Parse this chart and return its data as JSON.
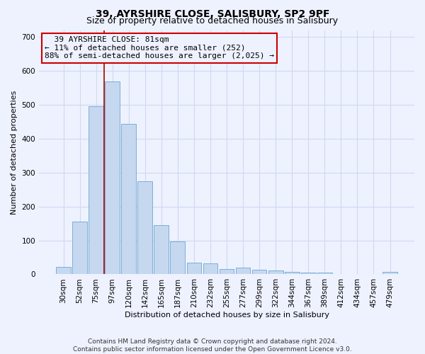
{
  "title": "39, AYRSHIRE CLOSE, SALISBURY, SP2 9PF",
  "subtitle": "Size of property relative to detached houses in Salisbury",
  "xlabel": "Distribution of detached houses by size in Salisbury",
  "ylabel": "Number of detached properties",
  "categories": [
    "30sqm",
    "52sqm",
    "75sqm",
    "97sqm",
    "120sqm",
    "142sqm",
    "165sqm",
    "187sqm",
    "210sqm",
    "232sqm",
    "255sqm",
    "277sqm",
    "299sqm",
    "322sqm",
    "344sqm",
    "367sqm",
    "389sqm",
    "412sqm",
    "434sqm",
    "457sqm",
    "479sqm"
  ],
  "values": [
    22,
    155,
    495,
    568,
    443,
    275,
    145,
    97,
    35,
    33,
    15,
    20,
    13,
    12,
    8,
    6,
    6,
    0,
    0,
    0,
    7
  ],
  "bar_color": "#c5d8f0",
  "bar_edge_color": "#7bafd4",
  "vline_color": "#aa0000",
  "annotation_text": "  39 AYRSHIRE CLOSE: 81sqm\n← 11% of detached houses are smaller (252)\n88% of semi-detached houses are larger (2,025) →",
  "annotation_box_color": "#cc0000",
  "ylim": [
    0,
    720
  ],
  "yticks": [
    0,
    100,
    200,
    300,
    400,
    500,
    600,
    700
  ],
  "footer": "Contains HM Land Registry data © Crown copyright and database right 2024.\nContains public sector information licensed under the Open Government Licence v3.0.",
  "background_color": "#eef2ff",
  "grid_color": "#d0d8f0",
  "title_fontsize": 10,
  "subtitle_fontsize": 9,
  "axis_label_fontsize": 8,
  "tick_fontsize": 7.5,
  "annotation_fontsize": 8,
  "footer_fontsize": 6.5
}
